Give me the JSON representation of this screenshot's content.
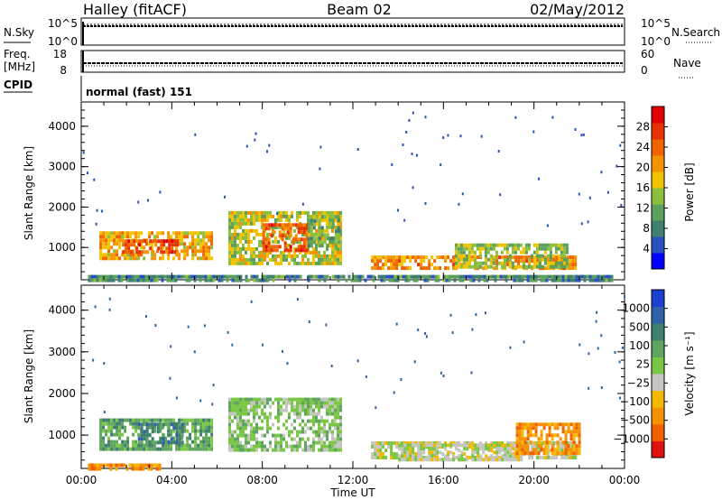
{
  "header": {
    "site": "Halley (fitACF)",
    "beam": "Beam 02",
    "date": "02/May/2012"
  },
  "strip": {
    "nsky_label": "N.Sky",
    "nsky_ticks": [
      "10^5",
      "10^0"
    ],
    "nsearch_label": "N.Search",
    "nsearch_ticks": [
      "10^5",
      "10^0"
    ],
    "freq_label_1": "Freq.",
    "freq_label_2": "[MHz]",
    "freq_ticks": [
      "18",
      "8"
    ],
    "nave_label": "Nave",
    "nave_ticks": [
      "60",
      "0"
    ],
    "cpid_label": "CPID",
    "cpid_text": "normal (fast) 151"
  },
  "colors": {
    "power_scale": [
      "#0000ff",
      "#2a52be",
      "#3f7f6f",
      "#5ba05b",
      "#8dbf3f",
      "#f2c300",
      "#f59200",
      "#f06400",
      "#e83000",
      "#e00000"
    ],
    "velocity_scale": [
      "#1a3fd1",
      "#2f62a8",
      "#3f7f6f",
      "#5fa55f",
      "#79c745",
      "#c6c6c0",
      "#f5b800",
      "#f59000",
      "#f06000",
      "#e01010"
    ],
    "ground_scatter": "#c6c6c0"
  },
  "chart_data": [
    {
      "type": "heatmap",
      "name": "power",
      "ylabel": "Slant Range [km]",
      "xlim": [
        0,
        24
      ],
      "ylim": [
        200,
        4600
      ],
      "y_ticks": [
        1000,
        2000,
        3000,
        4000
      ],
      "colorbar": {
        "label": "Power [dB]",
        "min": 0,
        "max": 32,
        "ticks": [
          4,
          8,
          12,
          16,
          20,
          24,
          28
        ]
      },
      "regions": [
        {
          "t0": 0.8,
          "t1": 5.8,
          "r0": 700,
          "r1": 1400,
          "v": 20
        },
        {
          "t0": 1.8,
          "t1": 4.2,
          "r0": 900,
          "r1": 1200,
          "v": 26
        },
        {
          "t0": 6.5,
          "t1": 11.5,
          "r0": 600,
          "r1": 1900,
          "v": 16
        },
        {
          "t0": 8.0,
          "t1": 10.0,
          "r0": 900,
          "r1": 1600,
          "v": 26
        },
        {
          "t0": 10.0,
          "t1": 11.4,
          "r0": 1000,
          "r1": 1800,
          "v": 12
        },
        {
          "t0": 12.8,
          "t1": 21.8,
          "r0": 450,
          "r1": 800,
          "v": 22
        },
        {
          "t0": 16.5,
          "t1": 21.5,
          "r0": 550,
          "r1": 1100,
          "v": 14
        },
        {
          "t0": 0.3,
          "t1": 23.5,
          "r0": 200,
          "r1": 320,
          "v": 8
        }
      ]
    },
    {
      "type": "heatmap",
      "name": "velocity",
      "ylabel": "Slant Range [km]",
      "xlabel": "Time UT",
      "xlim": [
        0,
        24
      ],
      "ylim": [
        200,
        4600
      ],
      "y_ticks": [
        1000,
        2000,
        3000,
        4000
      ],
      "x_ticks": [
        "00:00",
        "04:00",
        "08:00",
        "12:00",
        "16:00",
        "20:00",
        "00:00"
      ],
      "colorbar": {
        "label": "Velocity [m s⁻¹]",
        "min": -1200,
        "max": 1200,
        "ticks": [
          "1000",
          "500",
          "100",
          "25",
          "−25",
          "−100",
          "−500",
          "−1000"
        ]
      },
      "regions": [
        {
          "t0": 0.8,
          "t1": 5.8,
          "r0": 700,
          "r1": 1400,
          "v": 3
        },
        {
          "t0": 2.5,
          "t1": 4.5,
          "r0": 800,
          "r1": 1300,
          "v": 2
        },
        {
          "t0": 6.5,
          "t1": 11.5,
          "r0": 600,
          "r1": 1900,
          "v": 4
        },
        {
          "t0": 12.8,
          "t1": 21.8,
          "r0": 450,
          "r1": 850,
          "v": 5
        },
        {
          "t0": 14.0,
          "t1": 19.5,
          "r0": 450,
          "r1": 800,
          "v": 5
        },
        {
          "t0": 19.2,
          "t1": 22.0,
          "r0": 600,
          "r1": 1300,
          "v": 7
        },
        {
          "t0": 0.3,
          "t1": 3.5,
          "r0": 200,
          "r1": 320,
          "v": 7
        }
      ]
    }
  ]
}
